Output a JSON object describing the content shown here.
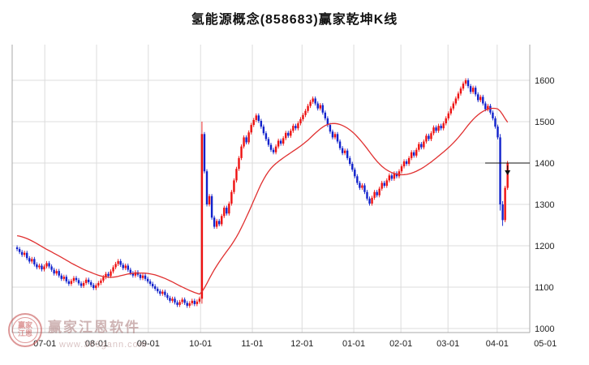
{
  "title": "氢能源概念(858683)赢家乾坤K线",
  "watermark": {
    "brand": "赢家江恩软件",
    "url": "www.360gann.com",
    "seal_line1": "赢家",
    "seal_line2": "江恩"
  },
  "chart_data": {
    "type": "candlestick",
    "title": "氢能源概念(858683)赢家乾坤K线",
    "symbol": "858683",
    "y_axis": {
      "min": 1000,
      "max": 1600,
      "step": 100,
      "ticks": [
        1000,
        1100,
        1200,
        1300,
        1400,
        1500,
        1600
      ]
    },
    "x_ticks": [
      {
        "label": "07-01",
        "pos": 0.063
      },
      {
        "label": "08-01",
        "pos": 0.163
      },
      {
        "label": "09-01",
        "pos": 0.263
      },
      {
        "label": "10-01",
        "pos": 0.364
      },
      {
        "label": "11-01",
        "pos": 0.464
      },
      {
        "label": "12-01",
        "pos": 0.56
      },
      {
        "label": "01-01",
        "pos": 0.66
      },
      {
        "label": "02-01",
        "pos": 0.751
      },
      {
        "label": "03-01",
        "pos": 0.842
      },
      {
        "label": "04-01",
        "pos": 0.937
      },
      {
        "label": "05-01",
        "pos": 1.03
      }
    ],
    "first_open": 1196,
    "wick": 5,
    "closes": [
      1192,
      1185,
      1178,
      1183,
      1170,
      1162,
      1168,
      1155,
      1148,
      1152,
      1143,
      1150,
      1158,
      1150,
      1142,
      1133,
      1139,
      1128,
      1120,
      1125,
      1114,
      1108,
      1115,
      1122,
      1117,
      1109,
      1103,
      1110,
      1118,
      1112,
      1105,
      1098,
      1104,
      1110,
      1116,
      1124,
      1132,
      1127,
      1138,
      1148,
      1156,
      1163,
      1154,
      1146,
      1152,
      1142,
      1134,
      1128,
      1136,
      1130,
      1122,
      1128,
      1120,
      1114,
      1108,
      1102,
      1096,
      1090,
      1084,
      1089,
      1081,
      1074,
      1067,
      1072,
      1063,
      1057,
      1064,
      1070,
      1062,
      1055,
      1061,
      1067,
      1059,
      1065,
      1072,
      1470,
      1380,
      1300,
      1320,
      1268,
      1246,
      1260,
      1252,
      1272,
      1292,
      1278,
      1302,
      1330,
      1358,
      1386,
      1412,
      1440,
      1462,
      1450,
      1474,
      1492,
      1504,
      1515,
      1502,
      1488,
      1472,
      1458,
      1444,
      1432,
      1426,
      1440,
      1454,
      1447,
      1460,
      1473,
      1466,
      1478,
      1490,
      1484,
      1496,
      1506,
      1516,
      1526,
      1538,
      1548,
      1556,
      1544,
      1532,
      1540,
      1522,
      1508,
      1492,
      1476,
      1462,
      1470,
      1452,
      1436,
      1424,
      1430,
      1412,
      1398,
      1384,
      1368,
      1352,
      1340,
      1346,
      1330,
      1314,
      1302,
      1316,
      1330,
      1322,
      1338,
      1352,
      1345,
      1358,
      1370,
      1362,
      1375,
      1368,
      1380,
      1392,
      1404,
      1398,
      1412,
      1426,
      1418,
      1432,
      1446,
      1438,
      1452,
      1466,
      1458,
      1472,
      1486,
      1478,
      1490,
      1484,
      1496,
      1508,
      1520,
      1532,
      1544,
      1556,
      1568,
      1580,
      1592,
      1600,
      1586,
      1572,
      1582,
      1566,
      1552,
      1560,
      1544,
      1530,
      1538,
      1522,
      1508,
      1488,
      1462,
      1300,
      1262,
      1340,
      1400
    ],
    "overrides": {
      "75": [
        1072,
        1500,
        1060,
        1470
      ],
      "196": [
        1462,
        1470,
        1285,
        1300
      ],
      "197": [
        1300,
        1308,
        1248,
        1262
      ]
    },
    "ma": {
      "label": "smooth-average-line",
      "seed": 1225,
      "color": "#e03030"
    },
    "reference_line": {
      "price": 1400,
      "color": "#111111",
      "arrow": "down"
    },
    "last_price": 1400,
    "colors": {
      "up": "#ee1111",
      "down": "#1122cc",
      "grid": "#dcdcdc",
      "axis": "#a9a9a9",
      "text": "#222222"
    }
  }
}
